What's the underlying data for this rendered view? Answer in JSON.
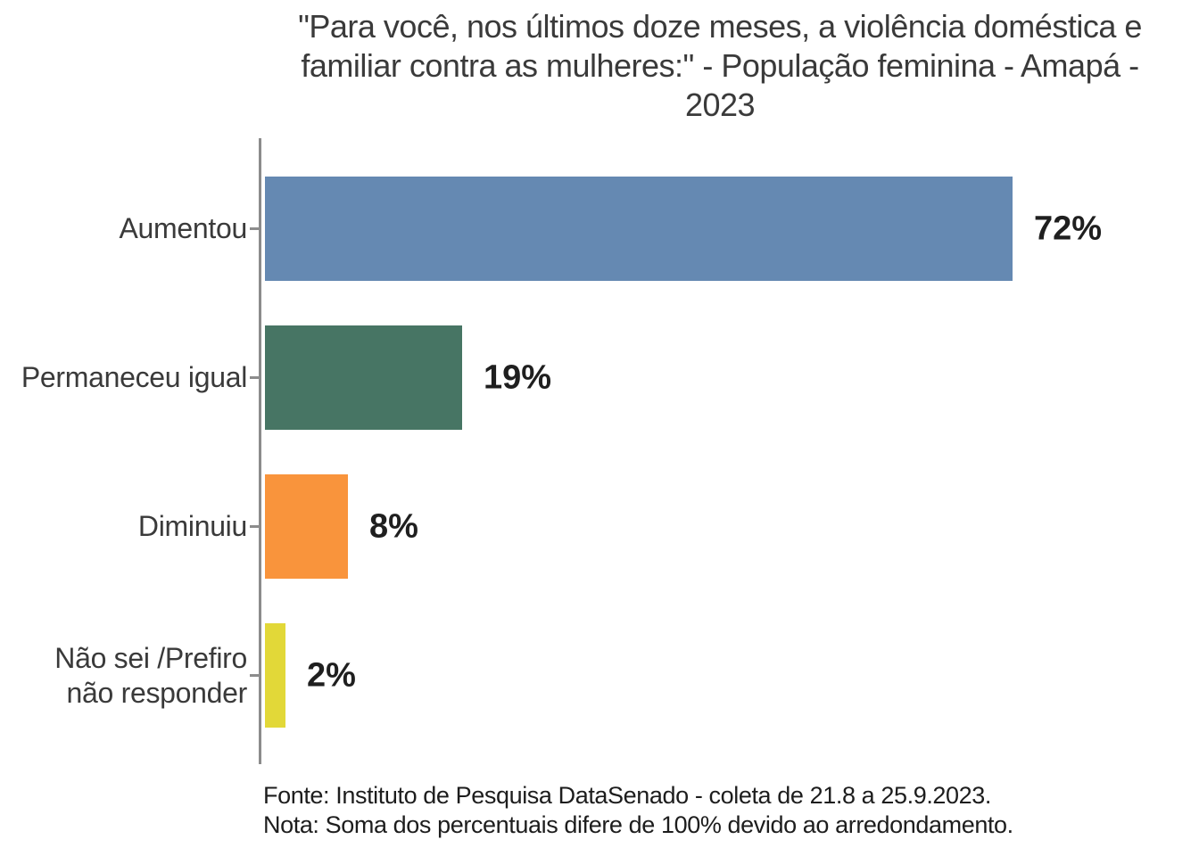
{
  "title": {
    "full": "\"Para você, nos últimos doze meses, a violência doméstica e familiar contra as mulheres:\" - População feminina - Amapá - 2023",
    "line1": "\"Para você, nos últimos doze meses, a violência doméstica e",
    "line2": "familiar contra as mulheres:\" - População feminina - Amapá -",
    "line3": "2023"
  },
  "chart_data": {
    "type": "bar",
    "orientation": "horizontal",
    "title": "\"Para você, nos últimos doze meses, a violência doméstica e familiar contra as mulheres:\" - População feminina - Amapá - 2023",
    "categories": [
      "Aumentou",
      "Permaneceu igual",
      "Diminuiu",
      "Não sei /Prefiro não responder"
    ],
    "category_lines": [
      [
        "Aumentou"
      ],
      [
        "Permaneceu igual"
      ],
      [
        "Diminuiu"
      ],
      [
        "Não sei /Prefiro",
        "não responder"
      ]
    ],
    "values": [
      72,
      19,
      8,
      2
    ],
    "value_labels": [
      "72%",
      "19%",
      "8%",
      "2%"
    ],
    "colors": [
      "#6589b2",
      "#477564",
      "#f9943c",
      "#e2d838"
    ],
    "unit": "%",
    "xlim": [
      0,
      100
    ],
    "grid": false,
    "legend": "none",
    "axis_color": "#8c8c8c"
  },
  "footer": {
    "line1": "Fonte: Instituto de Pesquisa DataSenado - coleta de 21.8 a 25.9.2023.",
    "line2": "Nota: Soma dos percentuais difere de 100% devido ao arredondamento."
  }
}
